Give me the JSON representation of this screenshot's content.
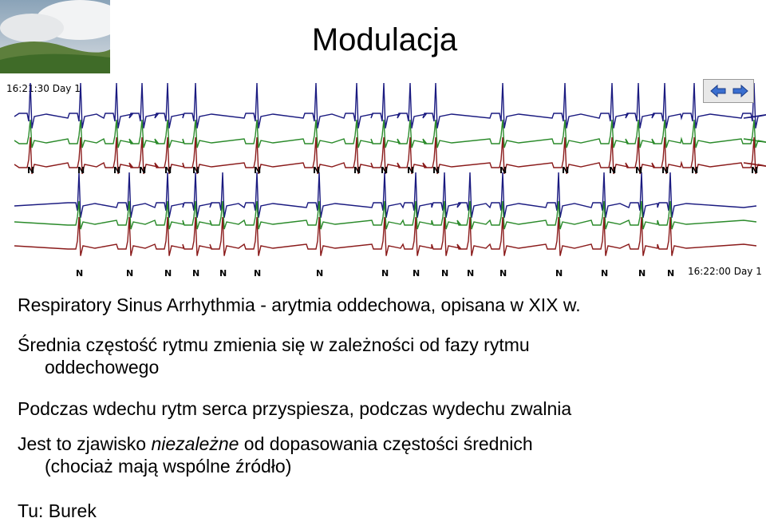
{
  "slide": {
    "title": "Modulacja"
  },
  "ecg": {
    "start_time": "16:21:30 Day 1",
    "end_time": "16:22:00 Day 1",
    "beat_label": "N",
    "trace_colors": {
      "blue": "#1a1a80",
      "green": "#2a8a2a",
      "red": "#8a1a1a"
    }
  },
  "nav": {
    "left_icon": "arrow-left-icon",
    "right_icon": "arrow-right-icon"
  },
  "bullets": {
    "item1": "Respiratory Sinus Arrhythmia - arytmia oddechowa, opisana w XIX w.",
    "item2_line1": "Średnia częstość rytmu zmienia się w zależności od fazy rytmu",
    "item2_line2": "oddechowego",
    "item3": "Podczas wdechu rytm serca przyspiesza, podczas wydechu zwalnia",
    "item4_prefix": "Jest to zjawisko ",
    "item4_emph": "niezależne",
    "item4_suffix": " od dopasowania częstości średnich",
    "item4_line2": "(chociaż mają wspólne źródło)",
    "item5": "Tu: Burek"
  }
}
